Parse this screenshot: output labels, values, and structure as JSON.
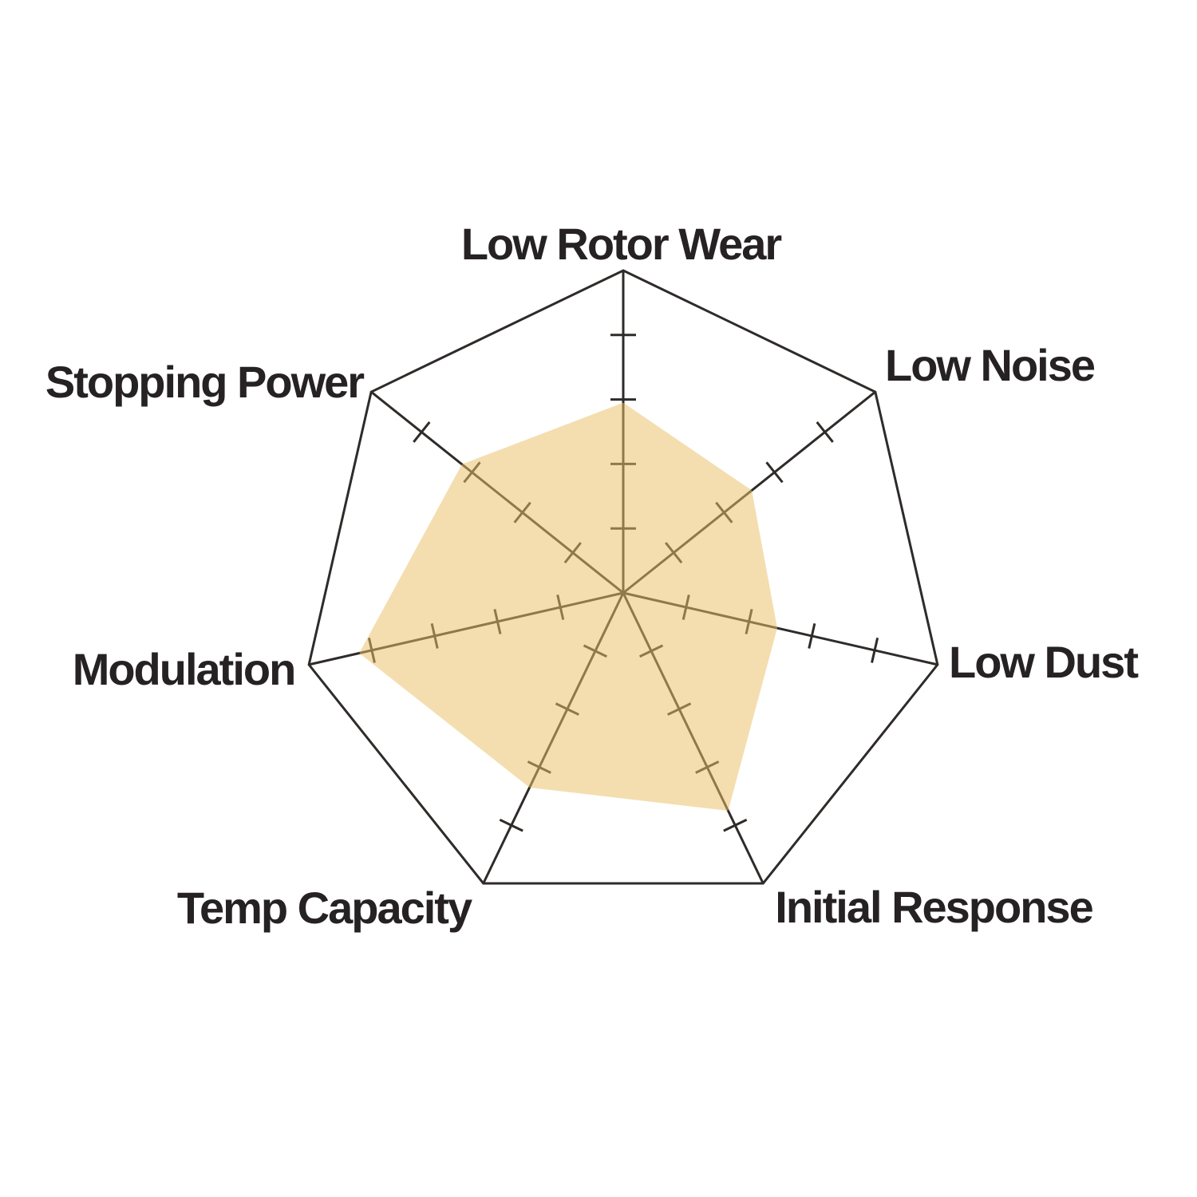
{
  "chart_data": {
    "type": "radar",
    "categories": [
      "Low Rotor Wear",
      "Low Noise",
      "Low Dust",
      "Initial Response",
      "Temp Capacity",
      "Modulation",
      "Stopping Power"
    ],
    "values": [
      5.9,
      5.1,
      4.9,
      7.5,
      6.7,
      8.4,
      6.4
    ],
    "scale_min": 0,
    "scale_max": 10,
    "tick_step": 2,
    "rings": 5,
    "grid_style": "axis-ticks-only, outer heptagon outline, no concentric rings",
    "legend": false,
    "title": "",
    "axis_line_color": "#2E2B29",
    "outline_color": "#2E2B29",
    "tick_color": "#2E2B29",
    "fill_color": "#E9BF65",
    "fill_opacity": 0.52,
    "label_color": "#262223",
    "background_color": "#FFFFFF"
  }
}
